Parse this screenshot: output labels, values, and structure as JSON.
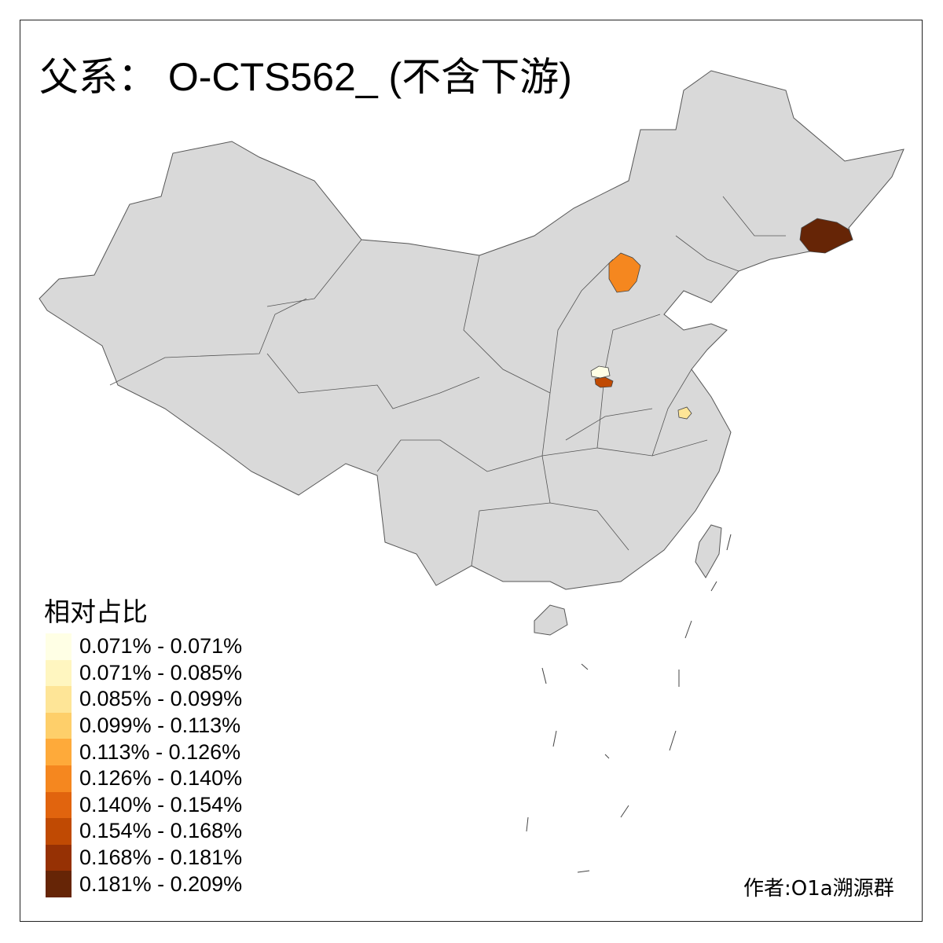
{
  "title": "父系： O-CTS562_ (不含下游)",
  "legend": {
    "title": "相对占比",
    "items": [
      {
        "label": "0.071% - 0.071%",
        "color": "#FFFFE5"
      },
      {
        "label": "0.071% - 0.085%",
        "color": "#FFF6C0"
      },
      {
        "label": "0.085% - 0.099%",
        "color": "#FEE597"
      },
      {
        "label": "0.099% - 0.113%",
        "color": "#FECF6A"
      },
      {
        "label": "0.113% - 0.126%",
        "color": "#FEAA3A"
      },
      {
        "label": "0.126% - 0.140%",
        "color": "#F5871F"
      },
      {
        "label": "0.140% - 0.154%",
        "color": "#E1640E"
      },
      {
        "label": "0.154% - 0.168%",
        "color": "#C04A03"
      },
      {
        "label": "0.168% - 0.181%",
        "color": "#963104"
      },
      {
        "label": "0.181% - 0.209%",
        "color": "#662506"
      }
    ]
  },
  "base_color": "#D9D9D9",
  "highlighted_regions": [
    {
      "area": "northeast (Heilongjiang/Jilin border)",
      "class_index": 9
    },
    {
      "area": "northern Hebei (Zhangjiakou)",
      "class_index": 5
    },
    {
      "area": "Henan (northern)",
      "class_index": 0
    },
    {
      "area": "Henan (central)",
      "class_index": 7
    },
    {
      "area": "Anhui",
      "class_index": 2
    }
  ],
  "credit": "作者:O1a溯源群"
}
